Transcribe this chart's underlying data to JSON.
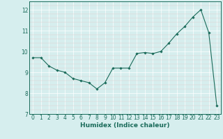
{
  "x": [
    0,
    1,
    2,
    3,
    4,
    5,
    6,
    7,
    8,
    9,
    10,
    11,
    12,
    13,
    14,
    15,
    16,
    17,
    18,
    19,
    20,
    21,
    22,
    23
  ],
  "y": [
    9.7,
    9.7,
    9.3,
    9.1,
    9.0,
    8.7,
    8.6,
    8.5,
    8.2,
    8.5,
    9.2,
    9.2,
    9.2,
    9.9,
    9.95,
    9.9,
    10.0,
    10.4,
    10.85,
    11.2,
    11.65,
    12.0,
    10.9,
    7.4
  ],
  "line_color": "#1a6b5a",
  "marker": "D",
  "marker_size": 1.8,
  "bg_color": "#d6eeee",
  "grid_color": "#c8dede",
  "xlabel": "Humidex (Indice chaleur)",
  "ylim": [
    7,
    12.4
  ],
  "xlim": [
    -0.5,
    23.5
  ],
  "yticks": [
    7,
    8,
    9,
    10,
    11,
    12
  ],
  "xticks": [
    0,
    1,
    2,
    3,
    4,
    5,
    6,
    7,
    8,
    9,
    10,
    11,
    12,
    13,
    14,
    15,
    16,
    17,
    18,
    19,
    20,
    21,
    22,
    23
  ],
  "tick_color": "#1a6b5a",
  "label_fontsize": 6.5,
  "tick_fontsize": 5.5,
  "spine_color": "#1a6b5a"
}
